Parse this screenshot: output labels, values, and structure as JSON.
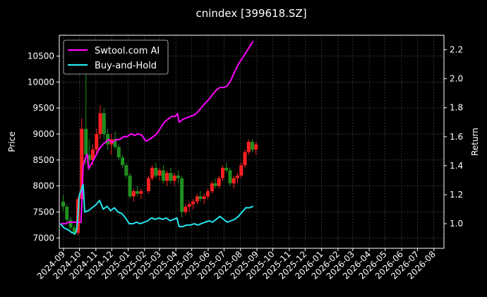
{
  "chart_data": {
    "type": "line",
    "title": "cnindex [399618.SZ]",
    "xlabel": "",
    "ylabel": "Price",
    "y2label": "Return",
    "x_ticks": [
      "2024-09",
      "2024-10",
      "2024-11",
      "2024-12",
      "2025-01",
      "2025-02",
      "2025-03",
      "2025-04",
      "2025-05",
      "2025-06",
      "2025-07",
      "2025-08",
      "2025-09",
      "2025-10",
      "2025-11",
      "2025-12",
      "2026-01",
      "2026-02",
      "2026-03",
      "2026-04",
      "2026-05",
      "2026-06",
      "2026-07",
      "2026-08"
    ],
    "xlim": [
      "2024-08-24",
      "2026-08-20"
    ],
    "ylim": [
      6800,
      10900
    ],
    "y_ticks": [
      7000,
      7500,
      8000,
      8500,
      9000,
      9500,
      10000,
      10500
    ],
    "y2lim": [
      0.83,
      2.3
    ],
    "y2_ticks": [
      1.0,
      1.2,
      1.4,
      1.6,
      1.8,
      2.0,
      2.2
    ],
    "grid": true,
    "legend_position": "top-left",
    "background": "#000000",
    "up_color": "#ff2020",
    "down_color": "#1f8f1f",
    "candles": [
      {
        "x": "2024-08-26",
        "v": [
          7700,
          7830,
          7520,
          7600
        ]
      },
      {
        "x": "2024-09-02",
        "v": [
          7600,
          7650,
          7300,
          7350
        ]
      },
      {
        "x": "2024-09-09",
        "v": [
          7350,
          7400,
          7150,
          7200
        ]
      },
      {
        "x": "2024-09-16",
        "v": [
          7200,
          7250,
          7050,
          7100
        ]
      },
      {
        "x": "2024-09-23",
        "v": [
          7100,
          7800,
          7050,
          7750
        ]
      },
      {
        "x": "2024-09-30",
        "v": [
          7750,
          9300,
          7700,
          9100
        ]
      },
      {
        "x": "2024-10-08",
        "v": [
          9100,
          10200,
          8400,
          8600
        ]
      },
      {
        "x": "2024-10-14",
        "v": [
          8600,
          8900,
          8300,
          8500
        ]
      },
      {
        "x": "2024-10-21",
        "v": [
          8500,
          8800,
          8400,
          8700
        ]
      },
      {
        "x": "2024-10-28",
        "v": [
          8700,
          9100,
          8600,
          9000
        ]
      },
      {
        "x": "2024-11-04",
        "v": [
          9000,
          9550,
          8900,
          9400
        ]
      },
      {
        "x": "2024-11-11",
        "v": [
          9400,
          9500,
          8900,
          9000
        ]
      },
      {
        "x": "2024-11-18",
        "v": [
          9000,
          9100,
          8700,
          8800
        ]
      },
      {
        "x": "2024-11-25",
        "v": [
          8800,
          9000,
          8600,
          8900
        ]
      },
      {
        "x": "2024-12-02",
        "v": [
          8900,
          9050,
          8700,
          8750
        ]
      },
      {
        "x": "2024-12-09",
        "v": [
          8750,
          8800,
          8500,
          8550
        ]
      },
      {
        "x": "2024-12-16",
        "v": [
          8550,
          8600,
          8350,
          8400
        ]
      },
      {
        "x": "2024-12-23",
        "v": [
          8400,
          8450,
          8150,
          8200
        ]
      },
      {
        "x": "2024-12-30",
        "v": [
          8200,
          8250,
          7750,
          7800
        ]
      },
      {
        "x": "2025-01-06",
        "v": [
          7800,
          7950,
          7700,
          7900
        ]
      },
      {
        "x": "2025-01-13",
        "v": [
          7900,
          8000,
          7800,
          7850
        ]
      },
      {
        "x": "2025-01-20",
        "v": [
          7850,
          7950,
          7750,
          7900
        ]
      },
      {
        "x": "2025-02-03",
        "v": [
          7900,
          8200,
          7850,
          8150
        ]
      },
      {
        "x": "2025-02-10",
        "v": [
          8150,
          8400,
          8100,
          8350
        ]
      },
      {
        "x": "2025-02-17",
        "v": [
          8350,
          8450,
          8150,
          8200
        ]
      },
      {
        "x": "2025-02-24",
        "v": [
          8200,
          8350,
          8100,
          8300
        ]
      },
      {
        "x": "2025-03-03",
        "v": [
          8300,
          8400,
          8050,
          8100
        ]
      },
      {
        "x": "2025-03-10",
        "v": [
          8100,
          8300,
          8000,
          8250
        ]
      },
      {
        "x": "2025-03-17",
        "v": [
          8250,
          8350,
          8050,
          8100
        ]
      },
      {
        "x": "2025-03-24",
        "v": [
          8100,
          8250,
          8000,
          8200
        ]
      },
      {
        "x": "2025-03-31",
        "v": [
          8200,
          8300,
          8050,
          8150
        ]
      },
      {
        "x": "2025-04-07",
        "v": [
          8150,
          8200,
          7400,
          7500
        ]
      },
      {
        "x": "2025-04-14",
        "v": [
          7500,
          7650,
          7450,
          7600
        ]
      },
      {
        "x": "2025-04-21",
        "v": [
          7600,
          7700,
          7500,
          7650
        ]
      },
      {
        "x": "2025-04-28",
        "v": [
          7650,
          7750,
          7550,
          7700
        ]
      },
      {
        "x": "2025-05-06",
        "v": [
          7700,
          7850,
          7650,
          7800
        ]
      },
      {
        "x": "2025-05-12",
        "v": [
          7800,
          7900,
          7700,
          7750
        ]
      },
      {
        "x": "2025-05-19",
        "v": [
          7750,
          7850,
          7650,
          7800
        ]
      },
      {
        "x": "2025-05-26",
        "v": [
          7800,
          7950,
          7750,
          7900
        ]
      },
      {
        "x": "2025-06-03",
        "v": [
          7900,
          8100,
          7850,
          8050
        ]
      },
      {
        "x": "2025-06-09",
        "v": [
          8050,
          8150,
          7950,
          8000
        ]
      },
      {
        "x": "2025-06-16",
        "v": [
          8000,
          8200,
          7950,
          8150
        ]
      },
      {
        "x": "2025-06-23",
        "v": [
          8150,
          8400,
          8100,
          8350
        ]
      },
      {
        "x": "2025-06-30",
        "v": [
          8350,
          8450,
          8250,
          8300
        ]
      },
      {
        "x": "2025-07-07",
        "v": [
          8300,
          8350,
          8000,
          8050
        ]
      },
      {
        "x": "2025-07-14",
        "v": [
          8050,
          8200,
          7950,
          8150
        ]
      },
      {
        "x": "2025-07-21",
        "v": [
          8150,
          8250,
          8050,
          8200
        ]
      },
      {
        "x": "2025-07-28",
        "v": [
          8200,
          8450,
          8150,
          8400
        ]
      },
      {
        "x": "2025-08-04",
        "v": [
          8400,
          8700,
          8350,
          8650
        ]
      },
      {
        "x": "2025-08-11",
        "v": [
          8650,
          8900,
          8600,
          8850
        ]
      },
      {
        "x": "2025-08-18",
        "v": [
          8850,
          8900,
          8650,
          8700
        ]
      },
      {
        "x": "2025-08-25",
        "v": [
          8700,
          8850,
          8600,
          8800
        ]
      }
    ],
    "series": [
      {
        "name": "Swtool.com AI",
        "color": "#ff00ff",
        "axis": "right",
        "points": [
          [
            "2024-08-26",
            1.0
          ],
          [
            "2024-09-05",
            1.0
          ],
          [
            "2024-09-10",
            1.01
          ],
          [
            "2024-09-20",
            1.01
          ],
          [
            "2024-09-27",
            1.01
          ],
          [
            "2024-10-04",
            1.01
          ],
          [
            "2024-10-08",
            1.4
          ],
          [
            "2024-10-12",
            1.45
          ],
          [
            "2024-10-16",
            1.48
          ],
          [
            "2024-10-18",
            1.38
          ],
          [
            "2024-10-25",
            1.42
          ],
          [
            "2024-11-01",
            1.47
          ],
          [
            "2024-11-08",
            1.52
          ],
          [
            "2024-11-15",
            1.55
          ],
          [
            "2024-11-25",
            1.58
          ],
          [
            "2024-12-02",
            1.56
          ],
          [
            "2024-12-09",
            1.58
          ],
          [
            "2024-12-16",
            1.58
          ],
          [
            "2024-12-23",
            1.6
          ],
          [
            "2024-12-30",
            1.6
          ],
          [
            "2025-01-06",
            1.62
          ],
          [
            "2025-01-13",
            1.61
          ],
          [
            "2025-01-20",
            1.62
          ],
          [
            "2025-01-27",
            1.61
          ],
          [
            "2025-02-03",
            1.57
          ],
          [
            "2025-02-10",
            1.58
          ],
          [
            "2025-02-17",
            1.6
          ],
          [
            "2025-02-24",
            1.62
          ],
          [
            "2025-03-03",
            1.66
          ],
          [
            "2025-03-10",
            1.7
          ],
          [
            "2025-03-17",
            1.72
          ],
          [
            "2025-03-24",
            1.74
          ],
          [
            "2025-03-31",
            1.74
          ],
          [
            "2025-04-04",
            1.76
          ],
          [
            "2025-04-07",
            1.7
          ],
          [
            "2025-04-14",
            1.72
          ],
          [
            "2025-04-21",
            1.73
          ],
          [
            "2025-04-28",
            1.74
          ],
          [
            "2025-05-06",
            1.75
          ],
          [
            "2025-05-12",
            1.77
          ],
          [
            "2025-05-19",
            1.8
          ],
          [
            "2025-05-26",
            1.83
          ],
          [
            "2025-06-03",
            1.86
          ],
          [
            "2025-06-09",
            1.89
          ],
          [
            "2025-06-16",
            1.92
          ],
          [
            "2025-06-23",
            1.94
          ],
          [
            "2025-06-30",
            1.94
          ],
          [
            "2025-07-07",
            1.95
          ],
          [
            "2025-07-14",
            1.99
          ],
          [
            "2025-07-21",
            2.05
          ],
          [
            "2025-07-28",
            2.1
          ],
          [
            "2025-08-04",
            2.14
          ],
          [
            "2025-08-11",
            2.18
          ],
          [
            "2025-08-18",
            2.22
          ],
          [
            "2025-08-25",
            2.26
          ]
        ]
      },
      {
        "name": "Buy-and-Hold",
        "color": "#22e6f0",
        "axis": "right",
        "points": [
          [
            "2024-08-26",
            1.0
          ],
          [
            "2024-09-02",
            0.97
          ],
          [
            "2024-09-09",
            0.96
          ],
          [
            "2024-09-16",
            0.94
          ],
          [
            "2024-09-23",
            0.93
          ],
          [
            "2024-09-26",
            0.96
          ],
          [
            "2024-10-01",
            1.2
          ],
          [
            "2024-10-08",
            1.27
          ],
          [
            "2024-10-11",
            1.08
          ],
          [
            "2024-10-18",
            1.09
          ],
          [
            "2024-10-25",
            1.11
          ],
          [
            "2024-11-01",
            1.13
          ],
          [
            "2024-11-08",
            1.16
          ],
          [
            "2024-11-15",
            1.1
          ],
          [
            "2024-11-22",
            1.12
          ],
          [
            "2024-11-29",
            1.09
          ],
          [
            "2024-12-06",
            1.11
          ],
          [
            "2024-12-13",
            1.08
          ],
          [
            "2024-12-20",
            1.07
          ],
          [
            "2024-12-27",
            1.04
          ],
          [
            "2025-01-03",
            1.0
          ],
          [
            "2025-01-10",
            1.0
          ],
          [
            "2025-01-17",
            1.01
          ],
          [
            "2025-01-24",
            1.0
          ],
          [
            "2025-02-07",
            1.02
          ],
          [
            "2025-02-14",
            1.04
          ],
          [
            "2025-02-21",
            1.03
          ],
          [
            "2025-02-28",
            1.04
          ],
          [
            "2025-03-07",
            1.03
          ],
          [
            "2025-03-14",
            1.04
          ],
          [
            "2025-03-21",
            1.02
          ],
          [
            "2025-03-28",
            1.03
          ],
          [
            "2025-04-03",
            1.04
          ],
          [
            "2025-04-07",
            0.98
          ],
          [
            "2025-04-14",
            0.98
          ],
          [
            "2025-04-21",
            0.99
          ],
          [
            "2025-04-28",
            0.99
          ],
          [
            "2025-05-06",
            1.0
          ],
          [
            "2025-05-12",
            0.99
          ],
          [
            "2025-05-19",
            1.0
          ],
          [
            "2025-05-26",
            1.01
          ],
          [
            "2025-06-03",
            1.02
          ],
          [
            "2025-06-09",
            1.01
          ],
          [
            "2025-06-16",
            1.03
          ],
          [
            "2025-06-23",
            1.05
          ],
          [
            "2025-06-30",
            1.03
          ],
          [
            "2025-07-07",
            1.01
          ],
          [
            "2025-07-14",
            1.02
          ],
          [
            "2025-07-21",
            1.03
          ],
          [
            "2025-07-28",
            1.05
          ],
          [
            "2025-08-04",
            1.08
          ],
          [
            "2025-08-11",
            1.11
          ],
          [
            "2025-08-18",
            1.11
          ],
          [
            "2025-08-25",
            1.12
          ]
        ]
      }
    ]
  }
}
